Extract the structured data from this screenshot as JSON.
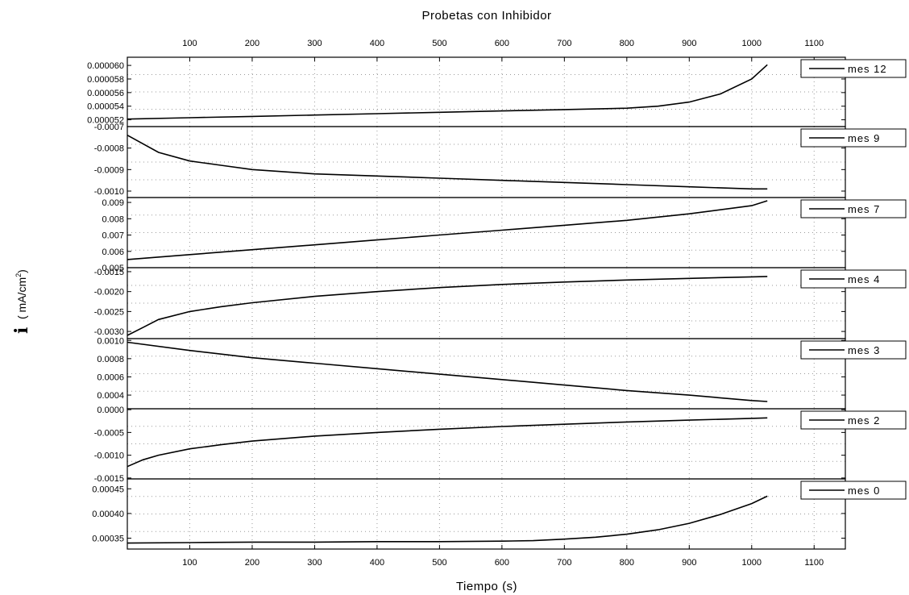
{
  "chart_data": {
    "type": "line",
    "title": "Probetas con Inhibidor",
    "xlabel": "Tiempo (s)",
    "ylabel": {
      "symbol": "i",
      "text": "( mA/cm",
      "sup": "2",
      "close": ")"
    },
    "xlim": [
      0,
      1150
    ],
    "xticks": [
      "100",
      "200",
      "300",
      "400",
      "500",
      "600",
      "700",
      "800",
      "900",
      "1000",
      "1100"
    ],
    "grid": true,
    "legend_position": "right",
    "panels": [
      {
        "legend": "mes 12",
        "ylim": [
          5.1e-05,
          6.12e-05
        ],
        "yticks": [
          "0.000060",
          "0.000058",
          "0.000056",
          "0.000054",
          "0.000052"
        ],
        "tick_values": [
          6e-05,
          5.8e-05,
          5.6e-05,
          5.4e-05,
          5.2e-05
        ],
        "series": {
          "x": [
            0,
            100,
            200,
            300,
            400,
            500,
            600,
            700,
            800,
            850,
            900,
            950,
            1000,
            1025
          ],
          "y": [
            5.21e-05,
            5.23e-05,
            5.25e-05,
            5.27e-05,
            5.29e-05,
            5.31e-05,
            5.33e-05,
            5.35e-05,
            5.37e-05,
            5.4e-05,
            5.46e-05,
            5.58e-05,
            5.8e-05,
            6.01e-05
          ]
        }
      },
      {
        "legend": "mes 9",
        "ylim": [
          -0.00103,
          -0.0007
        ],
        "yticks": [
          "-0.0007",
          "-0.0008",
          "-0.0009",
          "-0.0010"
        ],
        "tick_values": [
          -0.0007,
          -0.0008,
          -0.0009,
          -0.001
        ],
        "series": {
          "x": [
            0,
            50,
            100,
            150,
            200,
            300,
            400,
            500,
            600,
            700,
            800,
            900,
            1000,
            1025
          ],
          "y": [
            -0.00074,
            -0.00082,
            -0.00086,
            -0.00088,
            -0.0009,
            -0.00092,
            -0.00093,
            -0.00094,
            -0.00095,
            -0.00096,
            -0.00097,
            -0.00098,
            -0.00099,
            -0.00099
          ]
        }
      },
      {
        "legend": "mes 7",
        "ylim": [
          0.005,
          0.0093
        ],
        "yticks": [
          "0.009",
          "0.008",
          "0.007",
          "0.006",
          "0.005"
        ],
        "tick_values": [
          0.009,
          0.008,
          0.007,
          0.006,
          0.005
        ],
        "series": {
          "x": [
            0,
            100,
            200,
            300,
            400,
            500,
            600,
            700,
            800,
            900,
            1000,
            1025
          ],
          "y": [
            0.0055,
            0.0058,
            0.0061,
            0.0064,
            0.0067,
            0.007,
            0.0073,
            0.0076,
            0.0079,
            0.0083,
            0.0088,
            0.0091
          ]
        }
      },
      {
        "legend": "mes 4",
        "ylim": [
          -0.00318,
          -0.0014
        ],
        "yticks": [
          "-0.0015",
          "-0.0020",
          "-0.0025",
          "-0.0030"
        ],
        "tick_values": [
          -0.0015,
          -0.002,
          -0.0025,
          -0.003
        ],
        "series": {
          "x": [
            0,
            25,
            50,
            100,
            150,
            200,
            300,
            400,
            500,
            600,
            700,
            800,
            900,
            1000,
            1025
          ],
          "y": [
            -0.0031,
            -0.0029,
            -0.0027,
            -0.0025,
            -0.00238,
            -0.00228,
            -0.00212,
            -0.002,
            -0.0019,
            -0.00182,
            -0.00176,
            -0.00171,
            -0.00167,
            -0.00163,
            -0.00162
          ]
        }
      },
      {
        "legend": "mes 3",
        "ylim": [
          0.00025,
          0.00102
        ],
        "yticks": [
          "0.0010",
          "0.0008",
          "0.0006",
          "0.0004"
        ],
        "tick_values": [
          0.001,
          0.0008,
          0.0006,
          0.0004
        ],
        "series": {
          "x": [
            0,
            100,
            200,
            300,
            400,
            500,
            600,
            700,
            800,
            900,
            1000,
            1025
          ],
          "y": [
            0.00098,
            0.00089,
            0.00081,
            0.00075,
            0.00069,
            0.00063,
            0.00057,
            0.00051,
            0.00045,
            0.0004,
            0.00034,
            0.00033
          ]
        }
      },
      {
        "legend": "mes 2",
        "ylim": [
          -0.00152,
          2e-05
        ],
        "yticks": [
          "0.0000",
          "-0.0005",
          "-0.0010",
          "-0.0015"
        ],
        "tick_values": [
          0.0,
          -0.0005,
          -0.001,
          -0.0015
        ],
        "series": {
          "x": [
            0,
            25,
            50,
            100,
            150,
            200,
            300,
            400,
            500,
            600,
            700,
            800,
            900,
            1000,
            1025
          ],
          "y": [
            -0.00125,
            -0.0011,
            -0.001,
            -0.00086,
            -0.00077,
            -0.00069,
            -0.00058,
            -0.0005,
            -0.00043,
            -0.00037,
            -0.00032,
            -0.00027,
            -0.00023,
            -0.00019,
            -0.00018
          ]
        }
      },
      {
        "legend": "mes 0",
        "ylim": [
          0.000328,
          0.00047
        ],
        "yticks": [
          "0.00045",
          "0.00040",
          "0.00035"
        ],
        "tick_values": [
          0.00045,
          0.0004,
          0.00035
        ],
        "series": {
          "x": [
            0,
            100,
            200,
            300,
            400,
            500,
            600,
            650,
            700,
            750,
            800,
            850,
            900,
            950,
            1000,
            1025
          ],
          "y": [
            0.00034,
            0.000341,
            0.000342,
            0.000342,
            0.000343,
            0.000343,
            0.000344,
            0.000345,
            0.000348,
            0.000352,
            0.000358,
            0.000367,
            0.00038,
            0.000398,
            0.00042,
            0.000435
          ]
        }
      }
    ]
  }
}
